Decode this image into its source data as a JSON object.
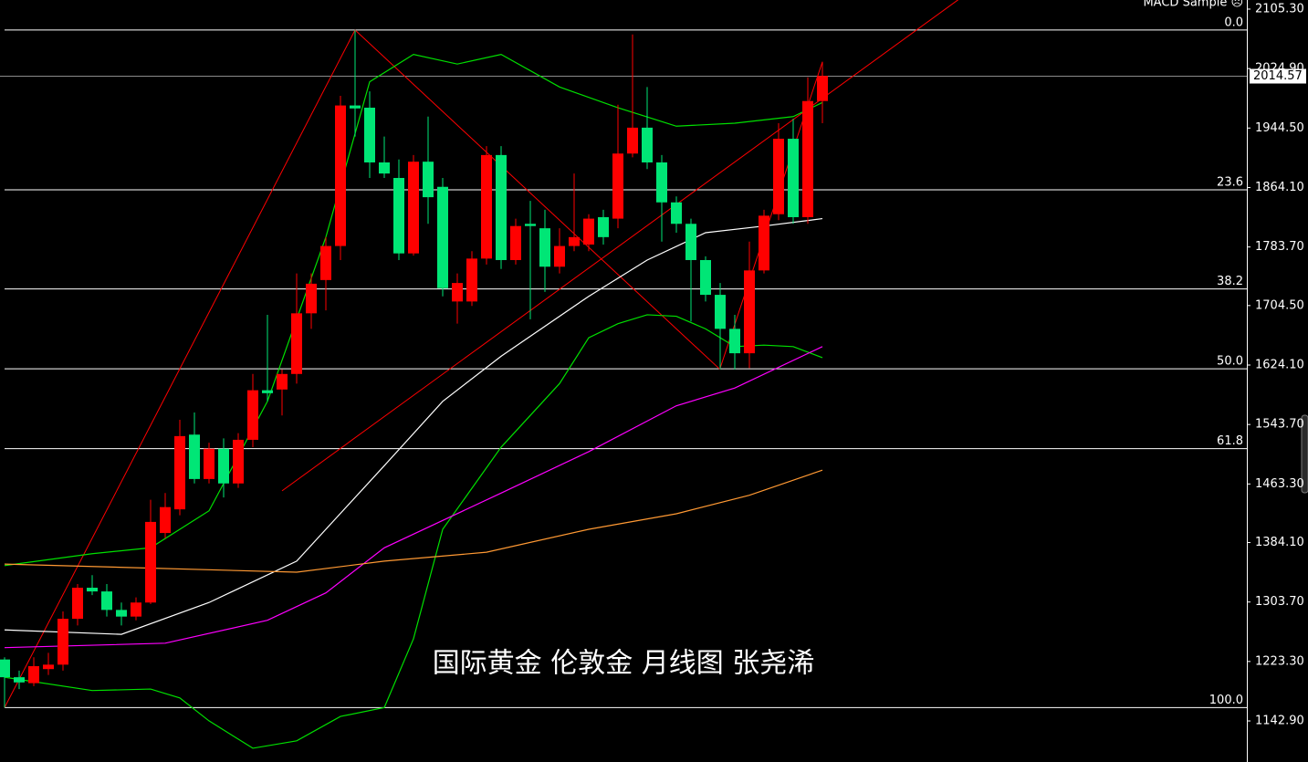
{
  "chart_data": {
    "type": "candlestick",
    "title": "国际黄金 伦敦金 月线图  张尧浠",
    "indicator_label": "MACD Sample ☹",
    "up_color": "#ff0000",
    "down_color": "#00e676",
    "ylim": [
      1087.4,
      2117.6
    ],
    "yticks": [
      {
        "value": 2105.3,
        "label": "2105.30"
      },
      {
        "value": 2024.9,
        "label": "2024.90"
      },
      {
        "value": 1944.5,
        "label": "1944.50"
      },
      {
        "value": 1864.1,
        "label": "1864.10"
      },
      {
        "value": 1783.7,
        "label": "1783.70"
      },
      {
        "value": 1704.5,
        "label": "1704.50"
      },
      {
        "value": 1624.1,
        "label": "1624.10"
      },
      {
        "value": 1543.7,
        "label": "1543.70"
      },
      {
        "value": 1463.3,
        "label": "1463.30"
      },
      {
        "value": 1384.1,
        "label": "1384.10"
      },
      {
        "value": 1303.7,
        "label": "1303.70"
      },
      {
        "value": 1223.3,
        "label": "1223.30"
      },
      {
        "value": 1142.9,
        "label": "1142.90"
      }
    ],
    "current_price": {
      "value": 2014.57,
      "label": "2014.57"
    },
    "open": [
      1226,
      1202,
      1194,
      1213,
      1219,
      1281,
      1323,
      1318,
      1293,
      1284,
      1303,
      1397,
      1429,
      1530,
      1470,
      1511,
      1464,
      1523,
      1590,
      1591,
      1612,
      1694,
      1739,
      1785,
      1975,
      1972,
      1898,
      1877,
      1775,
      1899,
      1865,
      1710,
      1710,
      1768,
      1908,
      1766,
      1815,
      1809,
      1757,
      1785,
      1787,
      1824,
      1822,
      1910,
      1945,
      1898,
      1844,
      1815,
      1766,
      1719,
      1673,
      1640,
      1752,
      1828,
      1930,
      1824,
      1981
    ],
    "high": [
      1229,
      1211,
      1229,
      1235,
      1291,
      1328,
      1340,
      1328,
      1303,
      1310,
      1442,
      1451,
      1550,
      1560,
      1519,
      1525,
      1532,
      1612,
      1692,
      1618,
      1748,
      1748,
      1797,
      1988,
      2077,
      1994,
      1933,
      1902,
      1908,
      1960,
      1877,
      1748,
      1778,
      1920,
      1920,
      1822,
      1846,
      1834,
      1809,
      1883,
      1828,
      1834,
      1976,
      2071,
      2000,
      1908,
      1852,
      1822,
      1771,
      1735,
      1692,
      1791,
      1834,
      1951,
      1957,
      2013,
      2034
    ],
    "low": [
      1161,
      1186,
      1190,
      1205,
      1211,
      1272,
      1313,
      1284,
      1272,
      1279,
      1301,
      1390,
      1421,
      1464,
      1464,
      1445,
      1458,
      1513,
      1575,
      1556,
      1599,
      1673,
      1698,
      1766,
      1933,
      1877,
      1877,
      1766,
      1772,
      1815,
      1717,
      1680,
      1704,
      1760,
      1754,
      1760,
      1686,
      1723,
      1748,
      1778,
      1778,
      1787,
      1809,
      1905,
      1889,
      1791,
      1803,
      1683,
      1710,
      1618,
      1618,
      1620,
      1748,
      1820,
      1815,
      1815,
      1951
    ],
    "close": [
      1202,
      1195,
      1217,
      1219,
      1281,
      1323,
      1318,
      1293,
      1284,
      1303,
      1412,
      1432,
      1528,
      1470,
      1511,
      1464,
      1523,
      1590,
      1586,
      1612,
      1694,
      1734,
      1785,
      1975,
      1971,
      1898,
      1883,
      1775,
      1899,
      1851,
      1728,
      1735,
      1768,
      1908,
      1766,
      1812,
      1812,
      1757,
      1785,
      1797,
      1822,
      1797,
      1910,
      1945,
      1898,
      1844,
      1815,
      1766,
      1719,
      1673,
      1640,
      1752,
      1826,
      1930,
      1824,
      1981,
      2015
    ],
    "series": [
      {
        "color": "#00e000",
        "x": [
          0,
          6,
          10,
          14,
          18,
          22,
          25,
          28,
          31,
          34,
          38,
          42,
          46,
          50,
          54,
          56
        ],
        "values": [
          1353,
          1369,
          1377,
          1427,
          1575,
          1797,
          2007,
          2044,
          2031,
          2044,
          2000,
          1972,
          1947,
          1951,
          1960,
          1979
        ]
      },
      {
        "color": "#00e000",
        "x": [
          0,
          6,
          10,
          12,
          14,
          17,
          20,
          23,
          26,
          28,
          30,
          34,
          38,
          40,
          42,
          44,
          46,
          48,
          50,
          52,
          54,
          56
        ],
        "values": [
          1202,
          1184,
          1186,
          1174,
          1143,
          1106,
          1116,
          1149,
          1161,
          1254,
          1402,
          1513,
          1599,
          1661,
          1680,
          1692,
          1690,
          1673,
          1649,
          1651,
          1649,
          1634
        ]
      },
      {
        "color": "#ffffff",
        "x": [
          0,
          8,
          14,
          20,
          26,
          30,
          34,
          40,
          44,
          48,
          52,
          56
        ],
        "values": [
          1266,
          1260,
          1303,
          1359,
          1488,
          1575,
          1636,
          1717,
          1766,
          1803,
          1812,
          1822
        ]
      },
      {
        "color": "#ff00ff",
        "x": [
          0,
          11,
          18,
          22,
          26,
          30,
          34,
          40,
          46,
          50,
          56
        ],
        "values": [
          1242,
          1248,
          1279,
          1316,
          1377,
          1414,
          1451,
          1507,
          1569,
          1593,
          1649
        ]
      },
      {
        "color": "#ff9933",
        "x": [
          0,
          20,
          26,
          33,
          40,
          46,
          51,
          56
        ],
        "values": [
          1355,
          1344,
          1359,
          1371,
          1402,
          1423,
          1448,
          1482
        ]
      }
    ],
    "trendlines": [
      {
        "x": [
          0,
          24
        ],
        "values": [
          1161,
          2077
        ]
      },
      {
        "x": [
          24,
          49
        ],
        "values": [
          2077,
          1618
        ]
      },
      {
        "x": [
          19,
          65.3
        ],
        "values": [
          1454,
          2118
        ]
      },
      {
        "x": [
          49,
          56
        ],
        "values": [
          1620,
          2034
        ]
      }
    ],
    "fib_levels": [
      {
        "label": "0.0",
        "value": 2077
      },
      {
        "label": "23.6",
        "value": 1861
      },
      {
        "label": "38.2",
        "value": 1727
      },
      {
        "label": "50.0",
        "value": 1619
      },
      {
        "label": "61.8",
        "value": 1511
      },
      {
        "label": "100.0",
        "value": 1161
      }
    ]
  }
}
